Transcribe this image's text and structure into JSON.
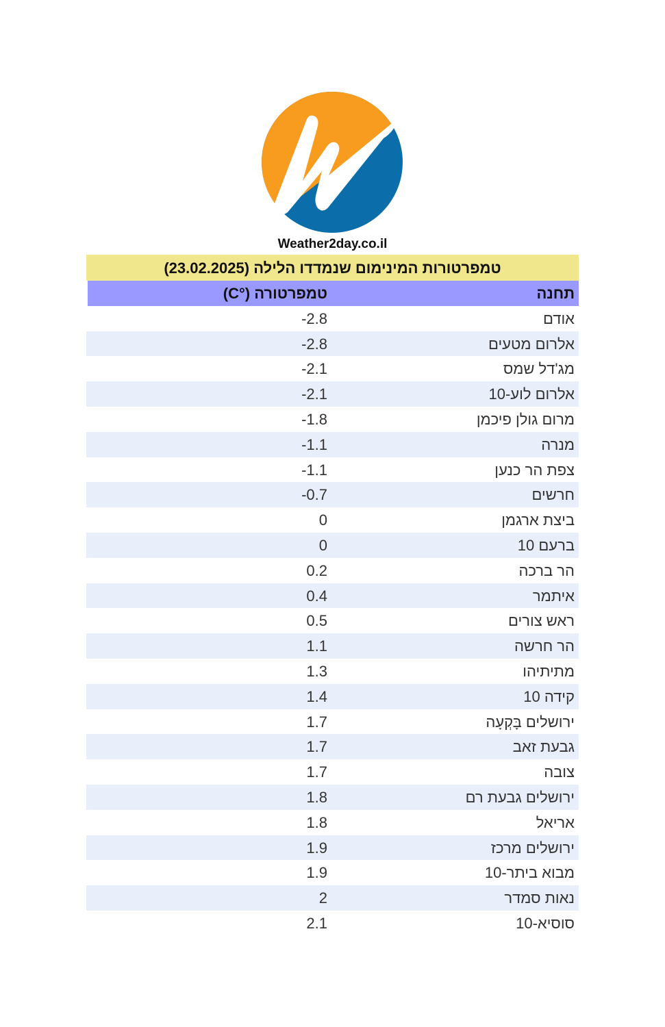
{
  "logo": {
    "brand_colors": {
      "orange": "#f89c20",
      "blue": "#0b6eab"
    }
  },
  "site_name": "Weather2day.co.il",
  "table": {
    "title": "טמפרטורות המינימום שנמדדו הלילה (23.02.2025)",
    "headers": {
      "station": "תחנה",
      "temperature": "טמפרטורה (°C)"
    },
    "header_color": "#9999ff",
    "title_color": "#f0e68c",
    "rows": [
      {
        "station": "אודם",
        "temp": "-2.8"
      },
      {
        "station": "אלרום מטעים",
        "temp": "-2.8"
      },
      {
        "station": "מג'דל שמס",
        "temp": "-2.1"
      },
      {
        "station": "אלרום לוע-10",
        "temp": "-2.1"
      },
      {
        "station": "מרום גולן פיכמן",
        "temp": "-1.8"
      },
      {
        "station": "מנרה",
        "temp": "-1.1"
      },
      {
        "station": "צפת הר כנען",
        "temp": "-1.1"
      },
      {
        "station": "חרשים",
        "temp": "-0.7"
      },
      {
        "station": "ביצת ארגמן",
        "temp": "0"
      },
      {
        "station": "ברעם 10",
        "temp": "0"
      },
      {
        "station": "הר ברכה",
        "temp": "0.2"
      },
      {
        "station": "איתמר",
        "temp": "0.4"
      },
      {
        "station": "ראש צורים",
        "temp": "0.5"
      },
      {
        "station": "הר חרשה",
        "temp": "1.1"
      },
      {
        "station": "מתיתיהו",
        "temp": "1.3"
      },
      {
        "station": "קידה 10",
        "temp": "1.4"
      },
      {
        "station": "ירושלים בָּקְעָה",
        "temp": "1.7"
      },
      {
        "station": "גבעת זאב",
        "temp": "1.7"
      },
      {
        "station": "צובה",
        "temp": "1.7"
      },
      {
        "station": "ירושלים גבעת רם",
        "temp": "1.8"
      },
      {
        "station": "אריאל",
        "temp": "1.8"
      },
      {
        "station": "ירושלים מרכז",
        "temp": "1.9"
      },
      {
        "station": "מבוא ביתר-10",
        "temp": "1.9"
      },
      {
        "station": "נאות סמדר",
        "temp": "2"
      },
      {
        "station": "סוסיא-10",
        "temp": "2.1"
      }
    ]
  }
}
